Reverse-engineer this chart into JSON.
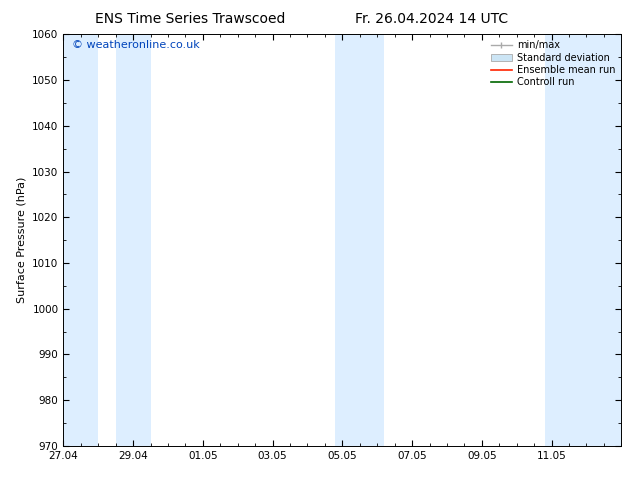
{
  "title_left": "ENS Time Series Trawscoed",
  "title_right": "Fr. 26.04.2024 14 UTC",
  "ylabel": "Surface Pressure (hPa)",
  "ylim": [
    970,
    1060
  ],
  "yticks": [
    970,
    980,
    990,
    1000,
    1010,
    1020,
    1030,
    1040,
    1050,
    1060
  ],
  "xlim_start": 0.0,
  "xlim_end": 16.0,
  "xtick_labels": [
    "27.04",
    "29.04",
    "01.05",
    "03.05",
    "05.05",
    "07.05",
    "09.05",
    "11.05"
  ],
  "xtick_positions": [
    0,
    2,
    4,
    6,
    8,
    10,
    12,
    14
  ],
  "shaded_bands": [
    {
      "x_start": 0.0,
      "x_end": 1.0
    },
    {
      "x_start": 1.5,
      "x_end": 2.5
    },
    {
      "x_start": 7.8,
      "x_end": 9.2
    },
    {
      "x_start": 13.8,
      "x_end": 16.0
    }
  ],
  "shade_color": "#ddeeff",
  "shade_alpha": 1.0,
  "watermark_text": "© weatheronline.co.uk",
  "watermark_color": "#0044bb",
  "watermark_fontsize": 8,
  "legend_labels": [
    "min/max",
    "Standard deviation",
    "Ensemble mean run",
    "Controll run"
  ],
  "background_color": "#ffffff",
  "plot_bg_color": "#ffffff",
  "title_fontsize": 10,
  "axis_label_fontsize": 8,
  "tick_fontsize": 7.5
}
